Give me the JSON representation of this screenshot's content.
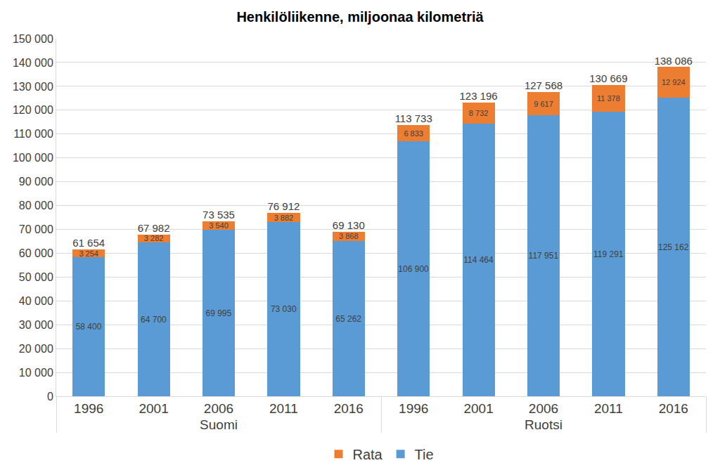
{
  "chart_data": {
    "type": "bar",
    "title": "Henkilöliikenne, miljoonaa kilometriä",
    "categories": [
      "1996",
      "2001",
      "2006",
      "2011",
      "2016",
      "1996",
      "2001",
      "2006",
      "2011",
      "2016"
    ],
    "category_groups": [
      "Suomi",
      "Suomi",
      "Suomi",
      "Suomi",
      "Suomi",
      "Ruotsi",
      "Ruotsi",
      "Ruotsi",
      "Ruotsi",
      "Ruotsi"
    ],
    "series": [
      {
        "name": "Tie",
        "color": "#5b9bd5",
        "values": [
          58400,
          64700,
          69995,
          73030,
          65262,
          106900,
          114464,
          117951,
          119291,
          125162
        ],
        "value_labels": [
          "58 400",
          "64 700",
          "69 995",
          "73 030",
          "65 262",
          "106 900",
          "114 464",
          "117 951",
          "119 291",
          "125 162"
        ]
      },
      {
        "name": "Rata",
        "color": "#ed7d31",
        "values": [
          3254,
          3282,
          3540,
          3882,
          3868,
          6833,
          8732,
          9617,
          11378,
          12924
        ],
        "value_labels": [
          "3 254",
          "3 282",
          "3 540",
          "3 882",
          "3 868",
          "6 833",
          "8 732",
          "9 617",
          "11 378",
          "12 924"
        ]
      }
    ],
    "totals": [
      61654,
      67982,
      73535,
      76912,
      69130,
      113733,
      123196,
      127568,
      130669,
      138086
    ],
    "total_labels": [
      "61 654",
      "67 982",
      "73 535",
      "76 912",
      "69 130",
      "113 733",
      "123 196",
      "127 568",
      "130 669",
      "138 086"
    ],
    "ylim": [
      0,
      150000
    ],
    "yticks": [
      0,
      {
        "value": 10000,
        "label": "10 000"
      },
      {
        "value": 20000,
        "label": "20 000"
      },
      {
        "value": 30000,
        "label": "30 000"
      },
      {
        "value": 40000,
        "label": "40 000"
      },
      {
        "value": 50000,
        "label": "50 000"
      },
      {
        "value": 60000,
        "label": "60 000"
      },
      {
        "value": 70000,
        "label": "70 000"
      },
      {
        "value": 80000,
        "label": "80 000"
      },
      {
        "value": 90000,
        "label": "90 000"
      },
      {
        "value": 100000,
        "label": "100 000"
      },
      {
        "value": 110000,
        "label": "110 000"
      },
      {
        "value": 120000,
        "label": "120 000"
      },
      {
        "value": 130000,
        "label": "130 000"
      },
      {
        "value": 140000,
        "label": "140 000"
      },
      {
        "value": 150000,
        "label": "150 000"
      }
    ],
    "grid": true,
    "legend": "bottom",
    "stacked": true,
    "data_labels": true
  }
}
